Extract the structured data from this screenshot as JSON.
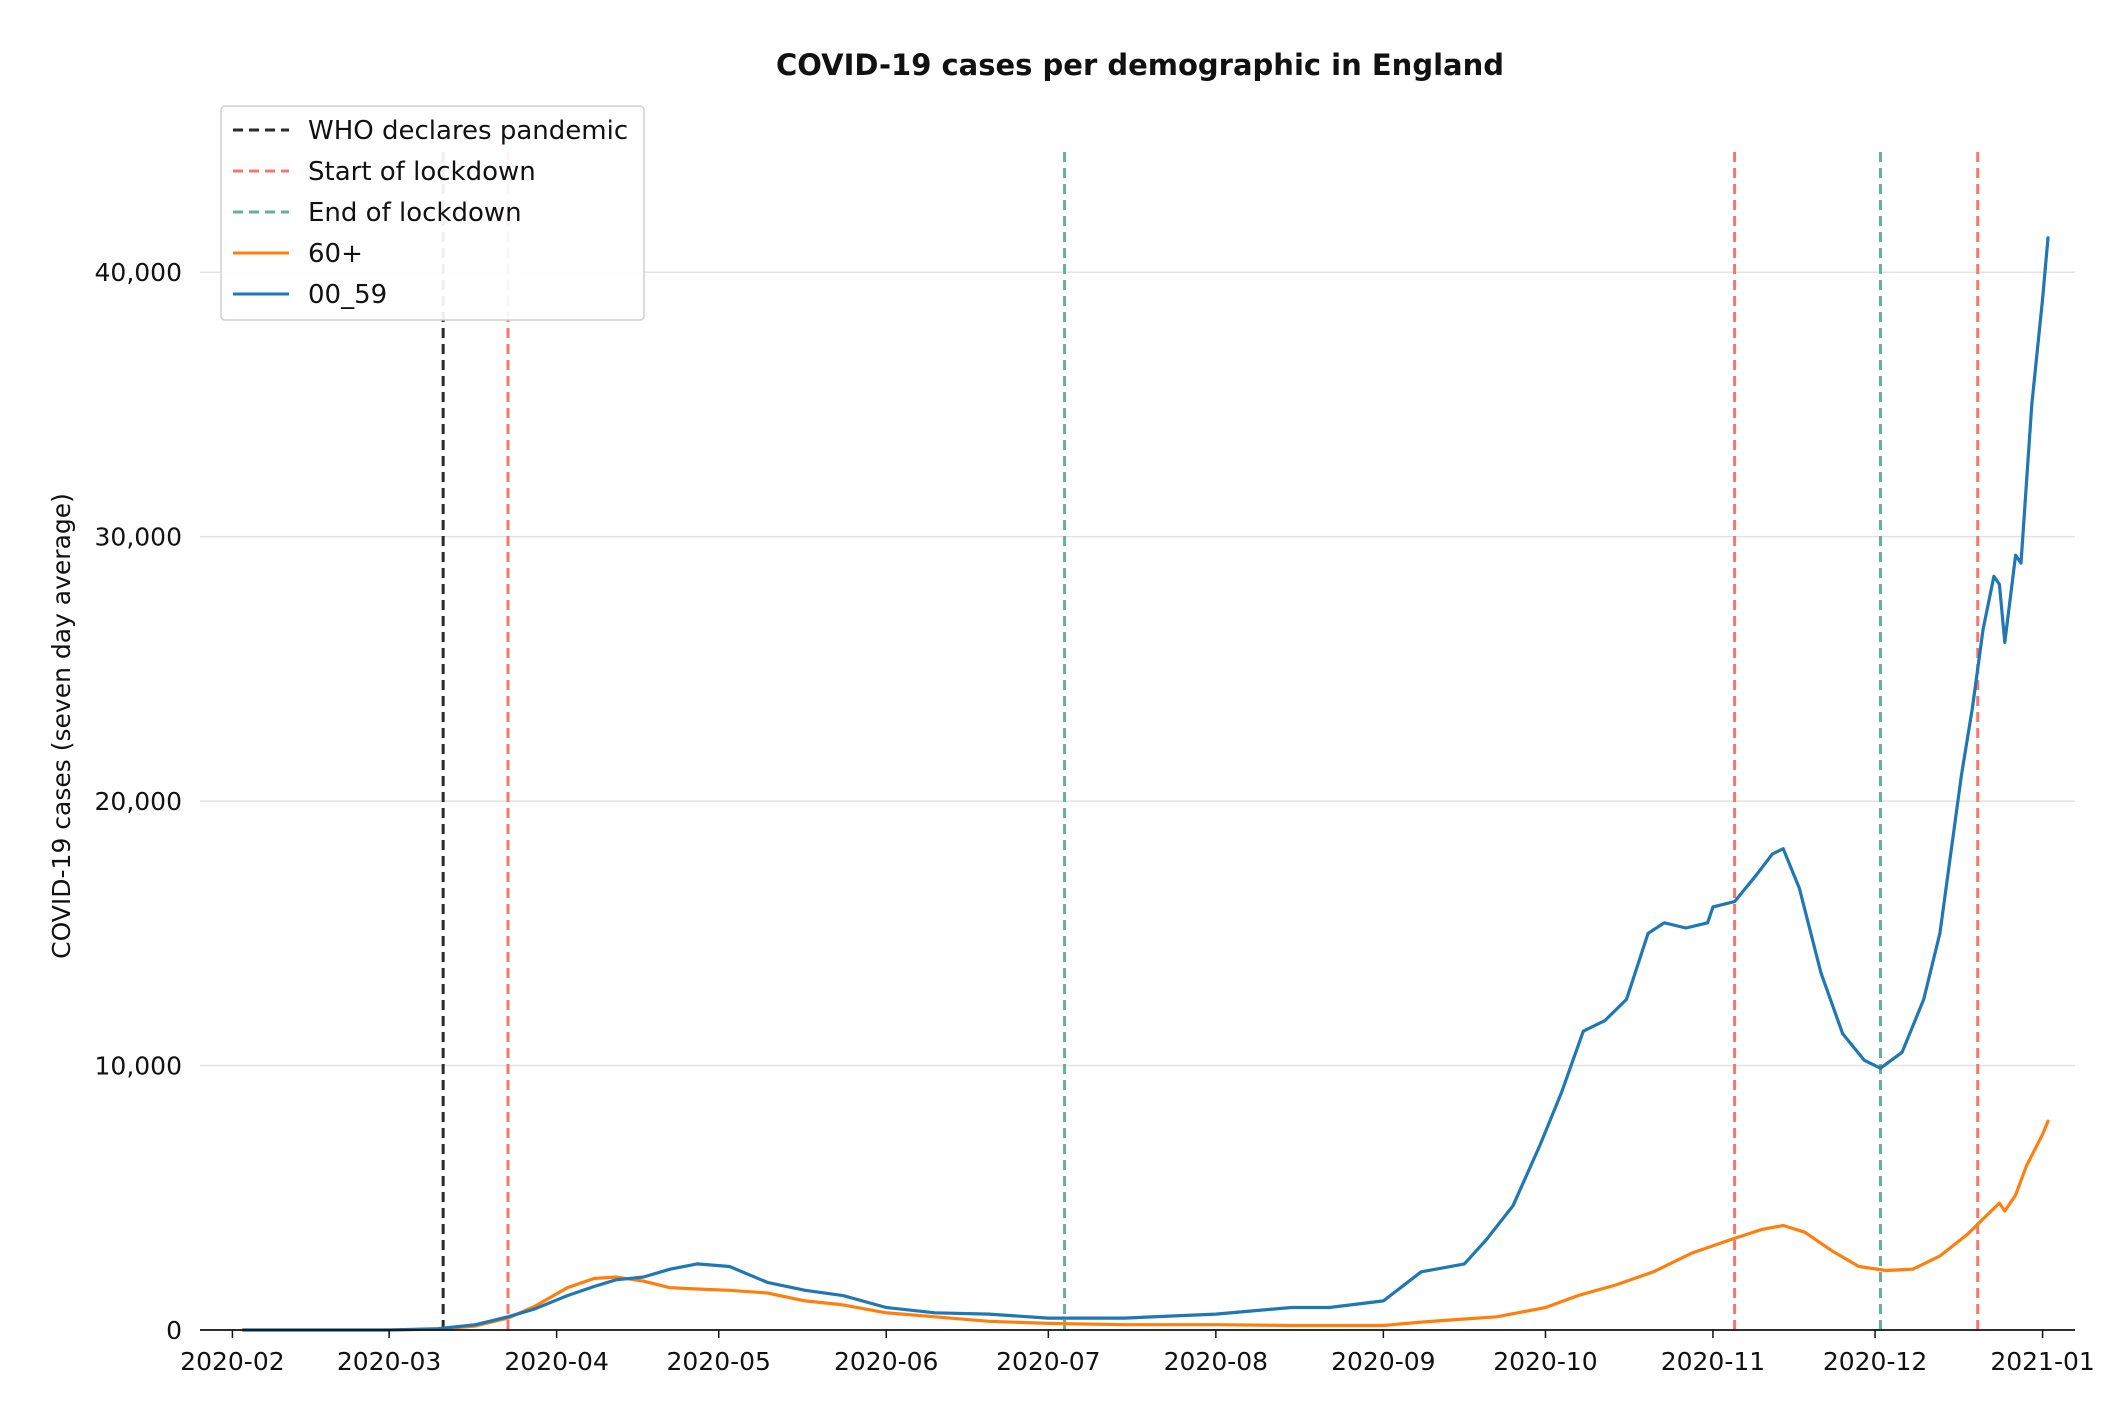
{
  "chart_data": {
    "type": "line",
    "title": "COVID-19 cases per demographic in England",
    "xlabel": "",
    "ylabel": "COVID-19 cases (seven day average)",
    "ylim": [
      0,
      45000
    ],
    "xlim": [
      "2020-01-26",
      "2021-01-07"
    ],
    "x_ticks": [
      "2020-02",
      "2020-03",
      "2020-04",
      "2020-05",
      "2020-06",
      "2020-07",
      "2020-08",
      "2020-09",
      "2020-10",
      "2020-11",
      "2020-12",
      "2021-01"
    ],
    "y_ticks": [
      0,
      10000,
      20000,
      30000,
      40000
    ],
    "y_tick_labels": [
      "0",
      "10,000",
      "20,000",
      "30,000",
      "40,000"
    ],
    "grid": "horizontal",
    "legend_position": "top-left",
    "events": [
      {
        "name": "WHO declares pandemic",
        "dates": [
          "2020-03-11"
        ],
        "color": "#2b2b2b"
      },
      {
        "name": "Start of lockdown",
        "dates": [
          "2020-03-23",
          "2020-11-05",
          "2020-12-20"
        ],
        "color": "#f8766d"
      },
      {
        "name": "End of lockdown",
        "dates": [
          "2020-07-04",
          "2020-12-02"
        ],
        "color": "#66b096"
      }
    ],
    "series": [
      {
        "name": "60+",
        "color": "#ff7f0e",
        "points": [
          [
            "2020-02-03",
            0
          ],
          [
            "2020-03-01",
            0
          ],
          [
            "2020-03-10",
            30
          ],
          [
            "2020-03-17",
            150
          ],
          [
            "2020-03-23",
            450
          ],
          [
            "2020-03-28",
            900
          ],
          [
            "2020-04-03",
            1600
          ],
          [
            "2020-04-08",
            1950
          ],
          [
            "2020-04-12",
            2000
          ],
          [
            "2020-04-17",
            1850
          ],
          [
            "2020-04-22",
            1600
          ],
          [
            "2020-04-27",
            1550
          ],
          [
            "2020-05-03",
            1500
          ],
          [
            "2020-05-10",
            1400
          ],
          [
            "2020-05-17",
            1100
          ],
          [
            "2020-05-24",
            950
          ],
          [
            "2020-06-01",
            650
          ],
          [
            "2020-06-10",
            500
          ],
          [
            "2020-06-20",
            330
          ],
          [
            "2020-07-01",
            250
          ],
          [
            "2020-07-15",
            200
          ],
          [
            "2020-08-01",
            200
          ],
          [
            "2020-08-15",
            170
          ],
          [
            "2020-09-01",
            170
          ],
          [
            "2020-09-08",
            300
          ],
          [
            "2020-09-15",
            400
          ],
          [
            "2020-09-22",
            500
          ],
          [
            "2020-10-01",
            850
          ],
          [
            "2020-10-07",
            1300
          ],
          [
            "2020-10-14",
            1700
          ],
          [
            "2020-10-21",
            2200
          ],
          [
            "2020-10-28",
            2900
          ],
          [
            "2020-11-04",
            3400
          ],
          [
            "2020-11-10",
            3800
          ],
          [
            "2020-11-14",
            3950
          ],
          [
            "2020-11-18",
            3700
          ],
          [
            "2020-11-23",
            3000
          ],
          [
            "2020-11-28",
            2400
          ],
          [
            "2020-12-03",
            2250
          ],
          [
            "2020-12-08",
            2300
          ],
          [
            "2020-12-13",
            2800
          ],
          [
            "2020-12-18",
            3600
          ],
          [
            "2020-12-22",
            4400
          ],
          [
            "2020-12-24",
            4800
          ],
          [
            "2020-12-25",
            4500
          ],
          [
            "2020-12-27",
            5100
          ],
          [
            "2020-12-29",
            6200
          ],
          [
            "2021-01-01",
            7400
          ],
          [
            "2021-01-02",
            7900
          ]
        ]
      },
      {
        "name": "00_59",
        "color": "#1f77b4",
        "points": [
          [
            "2020-02-03",
            0
          ],
          [
            "2020-03-01",
            0
          ],
          [
            "2020-03-10",
            50
          ],
          [
            "2020-03-17",
            200
          ],
          [
            "2020-03-23",
            500
          ],
          [
            "2020-03-28",
            800
          ],
          [
            "2020-04-03",
            1300
          ],
          [
            "2020-04-08",
            1650
          ],
          [
            "2020-04-12",
            1900
          ],
          [
            "2020-04-17",
            2000
          ],
          [
            "2020-04-22",
            2300
          ],
          [
            "2020-04-27",
            2500
          ],
          [
            "2020-05-03",
            2400
          ],
          [
            "2020-05-10",
            1800
          ],
          [
            "2020-05-17",
            1500
          ],
          [
            "2020-05-24",
            1300
          ],
          [
            "2020-06-01",
            850
          ],
          [
            "2020-06-10",
            650
          ],
          [
            "2020-06-20",
            600
          ],
          [
            "2020-07-01",
            450
          ],
          [
            "2020-07-15",
            450
          ],
          [
            "2020-08-01",
            600
          ],
          [
            "2020-08-15",
            850
          ],
          [
            "2020-08-22",
            850
          ],
          [
            "2020-09-01",
            1100
          ],
          [
            "2020-09-08",
            2200
          ],
          [
            "2020-09-12",
            2350
          ],
          [
            "2020-09-16",
            2500
          ],
          [
            "2020-09-20",
            3400
          ],
          [
            "2020-09-25",
            4700
          ],
          [
            "2020-09-30",
            7000
          ],
          [
            "2020-10-04",
            9000
          ],
          [
            "2020-10-08",
            11300
          ],
          [
            "2020-10-12",
            11700
          ],
          [
            "2020-10-16",
            12500
          ],
          [
            "2020-10-20",
            15000
          ],
          [
            "2020-10-23",
            15400
          ],
          [
            "2020-10-27",
            15200
          ],
          [
            "2020-10-31",
            15400
          ],
          [
            "2020-11-01",
            16000
          ],
          [
            "2020-11-05",
            16200
          ],
          [
            "2020-11-09",
            17200
          ],
          [
            "2020-11-12",
            18000
          ],
          [
            "2020-11-14",
            18200
          ],
          [
            "2020-11-17",
            16700
          ],
          [
            "2020-11-21",
            13500
          ],
          [
            "2020-11-25",
            11200
          ],
          [
            "2020-11-29",
            10200
          ],
          [
            "2020-12-02",
            9900
          ],
          [
            "2020-12-06",
            10500
          ],
          [
            "2020-12-10",
            12500
          ],
          [
            "2020-12-13",
            15000
          ],
          [
            "2020-12-17",
            21000
          ],
          [
            "2020-12-19",
            23500
          ],
          [
            "2020-12-21",
            26500
          ],
          [
            "2020-12-23",
            28500
          ],
          [
            "2020-12-24",
            28200
          ],
          [
            "2020-12-25",
            26000
          ],
          [
            "2020-12-27",
            29300
          ],
          [
            "2020-12-28",
            29000
          ],
          [
            "2020-12-30",
            35000
          ],
          [
            "2021-01-01",
            39000
          ],
          [
            "2021-01-02",
            41300
          ]
        ]
      }
    ]
  }
}
